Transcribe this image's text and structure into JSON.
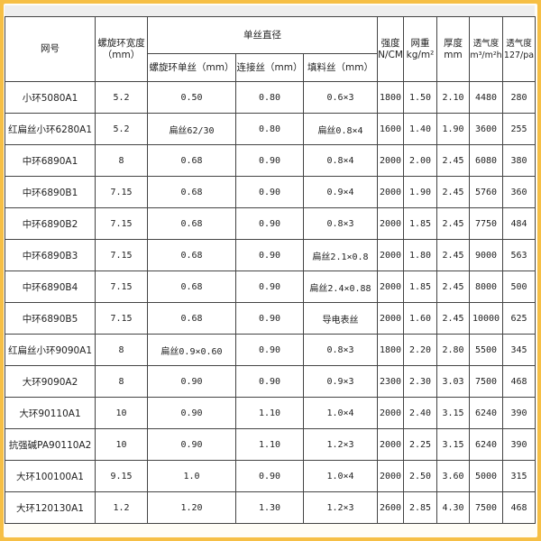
{
  "colors": {
    "frame": "#f6bf45",
    "border": "#444444"
  },
  "headers": {
    "model": "网号",
    "width": "螺旋环宽度",
    "width_unit": "（mm）",
    "diameter": "单丝直径",
    "spiral": "螺旋环单丝（mm）",
    "connect": "连接丝（mm）",
    "filler": "填料丝（mm）",
    "strength": "强度",
    "strength_unit": "N/CM",
    "weight": "网重",
    "weight_unit": "kg/m²",
    "thickness": "厚度",
    "thickness_unit": "mm",
    "perm1": "透气度",
    "perm1_unit": "m³/m²h",
    "perm2": "透气度",
    "perm2_unit": "127/pa"
  },
  "rows": [
    [
      "小环5080A1",
      "5.2",
      "0.50",
      "0.80",
      "0.6×3",
      "1800",
      "1.50",
      "2.10",
      "4480",
      "280"
    ],
    [
      "红扁丝小环6280A1",
      "5.2",
      "扁丝62/30",
      "0.80",
      "扁丝0.8×4",
      "1600",
      "1.40",
      "1.90",
      "3600",
      "255"
    ],
    [
      "中环6890A1",
      "8",
      "0.68",
      "0.90",
      "0.8×4",
      "2000",
      "2.00",
      "2.45",
      "6080",
      "380"
    ],
    [
      "中环6890B1",
      "7.15",
      "0.68",
      "0.90",
      "0.9×4",
      "2000",
      "1.90",
      "2.45",
      "5760",
      "360"
    ],
    [
      "中环6890B2",
      "7.15",
      "0.68",
      "0.90",
      "0.8×3",
      "2000",
      "1.85",
      "2.45",
      "7750",
      "484"
    ],
    [
      "中环6890B3",
      "7.15",
      "0.68",
      "0.90",
      "扁丝2.1×0.8",
      "2000",
      "1.80",
      "2.45",
      "9000",
      "563"
    ],
    [
      "中环6890B4",
      "7.15",
      "0.68",
      "0.90",
      "扁丝2.4×0.88",
      "2000",
      "1.85",
      "2.45",
      "8000",
      "500"
    ],
    [
      "中环6890B5",
      "7.15",
      "0.68",
      "0.90",
      "导电表丝",
      "2000",
      "1.60",
      "2.45",
      "10000",
      "625"
    ],
    [
      "红扁丝小环9090A1",
      "8",
      "扁丝0.9×0.60",
      "0.90",
      "0.8×3",
      "1800",
      "2.20",
      "2.80",
      "5500",
      "345"
    ],
    [
      "大环9090A2",
      "8",
      "0.90",
      "0.90",
      "0.9×3",
      "2300",
      "2.30",
      "3.03",
      "7500",
      "468"
    ],
    [
      "大环90110A1",
      "10",
      "0.90",
      "1.10",
      "1.0×4",
      "2000",
      "2.40",
      "3.15",
      "6240",
      "390"
    ],
    [
      "抗强碱PA90110A2",
      "10",
      "0.90",
      "1.10",
      "1.2×3",
      "2000",
      "2.25",
      "3.15",
      "6240",
      "390"
    ],
    [
      "大环100100A1",
      "9.15",
      "1.0",
      "0.90",
      "1.0×4",
      "2000",
      "2.50",
      "3.60",
      "5000",
      "315"
    ],
    [
      "大环120130A1",
      "1.2",
      "1.20",
      "1.30",
      "1.2×3",
      "2600",
      "2.85",
      "4.30",
      "7500",
      "468"
    ]
  ]
}
